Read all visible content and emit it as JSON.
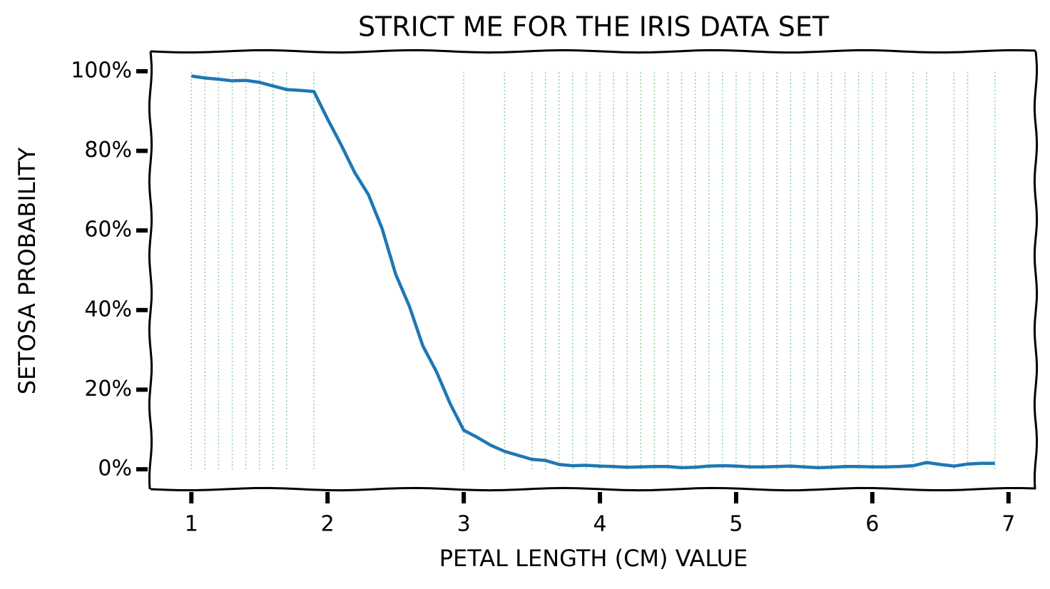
{
  "chart_data": {
    "type": "line",
    "title": "STRICT ME FOR THE IRIS DATA SET",
    "x_label": "PETAL LENGTH (CM) VALUE",
    "y_label": "SETOSA PROBABILITY",
    "x": [
      1.0,
      1.1,
      1.2,
      1.3,
      1.4,
      1.5,
      1.6,
      1.7,
      1.8,
      1.9,
      2.0,
      2.1,
      2.2,
      2.3,
      2.4,
      2.5,
      2.6,
      2.7,
      2.8,
      2.9,
      3.0,
      3.1,
      3.2,
      3.3,
      3.4,
      3.5,
      3.6,
      3.7,
      3.8,
      3.9,
      4.0,
      4.1,
      4.2,
      4.3,
      4.4,
      4.5,
      4.6,
      4.7,
      4.8,
      4.9,
      5.0,
      5.1,
      5.2,
      5.3,
      5.4,
      5.5,
      5.6,
      5.7,
      5.8,
      5.9,
      6.0,
      6.1,
      6.2,
      6.3,
      6.4,
      6.5,
      6.6,
      6.7,
      6.8,
      6.9
    ],
    "values": [
      98.8,
      98.3,
      98.0,
      97.6,
      97.7,
      97.2,
      96.3,
      95.4,
      95.2,
      94.9,
      88,
      81.5,
      74.5,
      69,
      60.5,
      49,
      41,
      31,
      24.5,
      16.5,
      9.8,
      8,
      6,
      4.5,
      3.5,
      2.5,
      2.2,
      1.2,
      0.9,
      1.0,
      0.8,
      0.7,
      0.5,
      0.6,
      0.7,
      0.7,
      0.4,
      0.5,
      0.8,
      0.9,
      0.8,
      0.6,
      0.6,
      0.7,
      0.8,
      0.6,
      0.4,
      0.5,
      0.7,
      0.7,
      0.6,
      0.6,
      0.7,
      0.9,
      1.7,
      1.2,
      0.8,
      1.3,
      1.5,
      1.5
    ],
    "color": "#1f77b4",
    "vlines": {
      "x": [
        1.0,
        1.1,
        1.2,
        1.3,
        1.4,
        1.5,
        1.6,
        1.7,
        1.9,
        3.0,
        3.3,
        3.5,
        3.6,
        3.7,
        3.8,
        3.9,
        4.0,
        4.1,
        4.2,
        4.3,
        4.4,
        4.5,
        4.6,
        4.7,
        4.8,
        4.9,
        5.0,
        5.1,
        5.2,
        5.3,
        5.4,
        5.5,
        5.6,
        5.7,
        5.8,
        5.9,
        6.0,
        6.1,
        6.3,
        6.4,
        6.6,
        6.7,
        6.9
      ],
      "from": 0,
      "to": 100,
      "color": "#8fcf9f"
    },
    "xlim": [
      0.7,
      7.2
    ],
    "ylim": [
      -5,
      105
    ],
    "xticks": [
      1,
      2,
      3,
      4,
      5,
      6,
      7
    ],
    "yticks": [
      {
        "value": 0,
        "label": "0%"
      },
      {
        "value": 20,
        "label": "20%"
      },
      {
        "value": 40,
        "label": "40%"
      },
      {
        "value": 60,
        "label": "60%"
      },
      {
        "value": 80,
        "label": "80%"
      },
      {
        "value": 100,
        "label": "100%"
      }
    ]
  }
}
